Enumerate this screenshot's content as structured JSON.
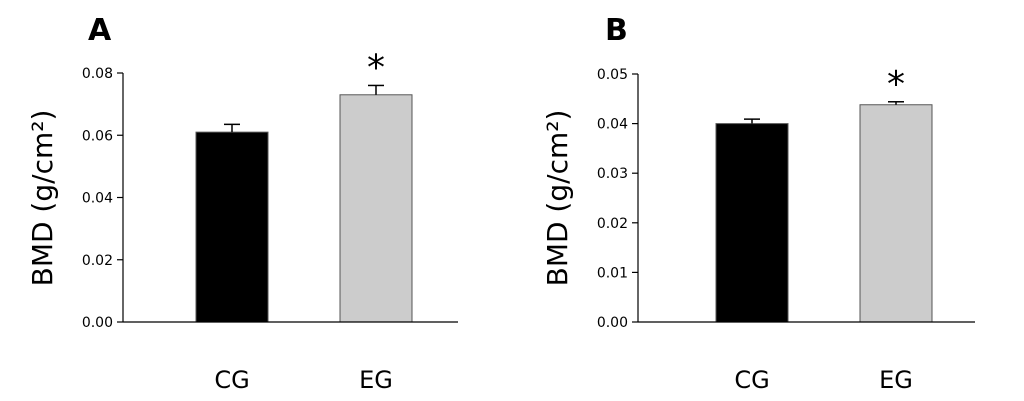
{
  "chart_data": [
    {
      "panel": "A",
      "type": "bar",
      "categories": [
        "CG",
        "EG"
      ],
      "values": [
        0.061,
        0.073
      ],
      "errors": [
        0.0025,
        0.003
      ],
      "bar_colors": [
        "#000000",
        "#cccccc"
      ],
      "significance": [
        "",
        "*"
      ],
      "ylabel": "BMD (g/cm²)",
      "ylim": [
        0,
        0.08
      ],
      "yticks": [
        "0.00",
        "0.02",
        "0.04",
        "0.06",
        "0.08"
      ],
      "grid": false
    },
    {
      "panel": "B",
      "type": "bar",
      "categories": [
        "CG",
        "EG"
      ],
      "values": [
        0.04,
        0.0438
      ],
      "errors": [
        0.0009,
        0.0006
      ],
      "bar_colors": [
        "#000000",
        "#cccccc"
      ],
      "significance": [
        "",
        "*"
      ],
      "ylabel": "BMD (g/cm²)",
      "ylim": [
        0,
        0.05
      ],
      "yticks": [
        "0.00",
        "0.01",
        "0.02",
        "0.03",
        "0.04",
        "0.05"
      ],
      "grid": false
    }
  ]
}
